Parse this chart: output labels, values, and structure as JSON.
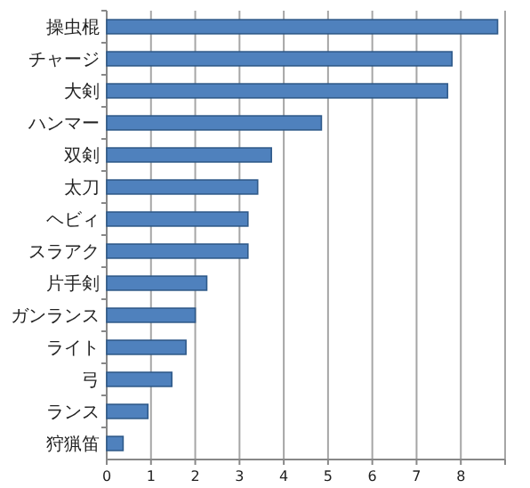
{
  "chart_data": {
    "type": "bar",
    "orientation": "horizontal",
    "categories": [
      "操虫棍",
      "チャージ",
      "大剣",
      "ハンマー",
      "双剣",
      "太刀",
      "ヘビィ",
      "スラアク",
      "片手剣",
      "ガンランス",
      "ライト",
      "弓",
      "ランス",
      "狩猟笛"
    ],
    "values": [
      8.83,
      7.8,
      7.7,
      4.85,
      3.72,
      3.41,
      3.19,
      3.19,
      2.26,
      2.0,
      1.79,
      1.47,
      0.93,
      0.37
    ],
    "color": "#4f81bd",
    "xlim": [
      0,
      9
    ],
    "xticks": [
      0,
      1,
      2,
      3,
      4,
      5,
      6,
      7,
      8,
      {
        "value": 9,
        "label": null
      }
    ],
    "grid": "x"
  }
}
